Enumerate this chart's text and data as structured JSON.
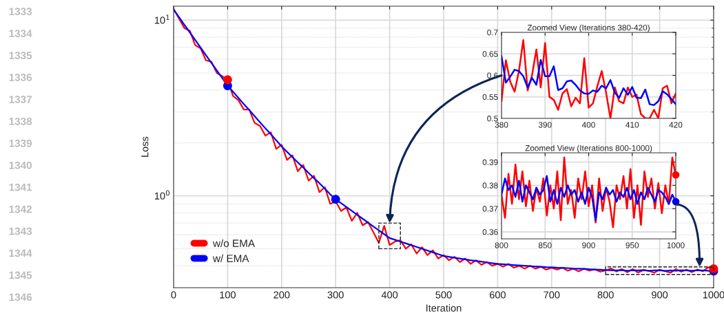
{
  "chart_data": [
    {
      "type": "line",
      "xlabel": "Iteration",
      "ylabel": "Loss",
      "log": "y",
      "grid": true,
      "legend": "bottom left",
      "xlim": [
        0,
        1000
      ],
      "xticks": [
        0,
        100,
        200,
        300,
        400,
        500,
        600,
        700,
        800,
        900,
        1000
      ],
      "ylim": [
        0.3,
        12
      ],
      "yticks": [
        {
          "value": 1,
          "label": "10$^{0}$"
        },
        {
          "value": 10,
          "label": "10$^{1}$"
        }
      ],
      "annotations": [
        "1333",
        "1334",
        "1335",
        "1336",
        "1337",
        "1338",
        "1339",
        "1340",
        "1341",
        "1342",
        "1343",
        "1344",
        "1345",
        "1346"
      ],
      "x": [
        0,
        10,
        20,
        30,
        40,
        50,
        60,
        70,
        80,
        90,
        100,
        110,
        120,
        130,
        140,
        150,
        160,
        170,
        180,
        190,
        200,
        210,
        220,
        230,
        240,
        250,
        260,
        270,
        280,
        290,
        300,
        310,
        320,
        330,
        340,
        350,
        360,
        370,
        380,
        390,
        400,
        410,
        420,
        430,
        440,
        450,
        460,
        470,
        480,
        490,
        500,
        510,
        520,
        530,
        540,
        550,
        560,
        570,
        580,
        590,
        600,
        610,
        620,
        630,
        640,
        650,
        660,
        670,
        680,
        690,
        700,
        710,
        720,
        730,
        740,
        750,
        760,
        770,
        780,
        790,
        800,
        810,
        820,
        830,
        840,
        850,
        860,
        870,
        880,
        890,
        900,
        910,
        920,
        930,
        940,
        950,
        960,
        970,
        980,
        990,
        1000
      ],
      "series": [
        {
          "name": "w/o EMA",
          "color": "#ff0000",
          "values": [
            11.6,
            10.2,
            9.0,
            8.7,
            7.2,
            6.9,
            5.9,
            5.8,
            5.0,
            4.8,
            4.58,
            3.7,
            3.5,
            3.1,
            3.1,
            2.6,
            2.5,
            2.2,
            2.3,
            1.85,
            1.95,
            1.6,
            1.7,
            1.38,
            1.5,
            1.22,
            1.3,
            1.05,
            1.12,
            0.9,
            0.93,
            0.82,
            0.86,
            0.72,
            0.8,
            0.68,
            0.71,
            0.62,
            0.54,
            0.675,
            0.525,
            0.55,
            0.558,
            0.5,
            0.53,
            0.47,
            0.51,
            0.46,
            0.49,
            0.44,
            0.46,
            0.43,
            0.45,
            0.42,
            0.44,
            0.41,
            0.43,
            0.405,
            0.42,
            0.4,
            0.41,
            0.395,
            0.41,
            0.39,
            0.4,
            0.385,
            0.4,
            0.385,
            0.395,
            0.38,
            0.39,
            0.38,
            0.39,
            0.375,
            0.385,
            0.372,
            0.385,
            0.375,
            0.382,
            0.37,
            0.376,
            0.386,
            0.371,
            0.383,
            0.367,
            0.383,
            0.366,
            0.378,
            0.374,
            0.365,
            0.38,
            0.373,
            0.365,
            0.383,
            0.37,
            0.38,
            0.368,
            0.381,
            0.372,
            0.392,
            0.3845
          ]
        },
        {
          "name": "w/ EMA",
          "color": "#0000ff",
          "values": [
            11.48,
            10.4,
            9.4,
            8.52,
            7.71,
            6.97,
            6.31,
            5.71,
            5.17,
            4.68,
            4.23,
            3.91,
            3.61,
            3.33,
            3.08,
            2.84,
            2.62,
            2.42,
            2.24,
            2.07,
            1.91,
            1.78,
            1.66,
            1.55,
            1.45,
            1.35,
            1.26,
            1.18,
            1.1,
            1.02,
            0.956,
            0.909,
            0.864,
            0.821,
            0.78,
            0.741,
            0.704,
            0.669,
            0.636,
            0.605,
            0.575,
            0.562,
            0.549,
            0.536,
            0.524,
            0.512,
            0.5,
            0.488,
            0.477,
            0.466,
            0.455,
            0.45,
            0.445,
            0.44,
            0.435,
            0.43,
            0.426,
            0.422,
            0.418,
            0.414,
            0.41,
            0.408,
            0.406,
            0.404,
            0.402,
            0.4,
            0.398,
            0.396,
            0.395,
            0.393,
            0.392,
            0.39,
            0.389,
            0.388,
            0.386,
            0.385,
            0.384,
            0.382,
            0.381,
            0.38,
            0.378,
            0.377,
            0.376,
            0.378,
            0.375,
            0.377,
            0.376,
            0.378,
            0.375,
            0.376,
            0.377,
            0.374,
            0.376,
            0.375,
            0.377,
            0.376,
            0.375,
            0.377,
            0.376,
            0.375,
            0.373
          ]
        },
        {
          "type": "scatter",
          "marker": "circle",
          "color": "#ff0000",
          "x": [
            100,
            300,
            1000
          ],
          "values": [
            4.58,
            null,
            0.3845
          ]
        },
        {
          "type": "scatter",
          "marker": "circle",
          "color": "#0000ff",
          "x": [
            100,
            300,
            1000
          ],
          "values": [
            4.23,
            0.956,
            0.373
          ]
        }
      ]
    },
    {
      "type": "line",
      "title": "Zoomed View (Iterations 380-420)",
      "grid": true,
      "xlim": [
        380,
        420
      ],
      "xticks": [
        380,
        390,
        400,
        410,
        420
      ],
      "ylim": [
        0.5,
        0.7
      ],
      "yticks": [
        0.5,
        0.55,
        0.6,
        0.65,
        0.7
      ],
      "x": [
        380,
        381,
        382,
        383,
        384,
        385,
        386,
        387,
        388,
        389,
        390,
        391,
        392,
        393,
        394,
        395,
        396,
        397,
        398,
        399,
        400,
        401,
        402,
        403,
        404,
        405,
        406,
        407,
        408,
        409,
        410,
        411,
        412,
        413,
        414,
        415,
        416,
        417,
        418,
        419,
        420
      ],
      "series": [
        {
          "color": "#ff0000",
          "values": [
            0.54,
            0.635,
            0.585,
            0.562,
            0.61,
            0.682,
            0.565,
            0.6,
            0.66,
            0.572,
            0.675,
            0.55,
            0.543,
            0.52,
            0.558,
            0.568,
            0.528,
            0.548,
            0.535,
            0.64,
            0.525,
            0.535,
            0.575,
            0.61,
            0.56,
            0.5,
            0.572,
            0.54,
            0.535,
            0.572,
            0.55,
            0.555,
            0.51,
            0.5,
            0.5,
            0.52,
            0.5,
            0.57,
            0.576,
            0.535,
            0.558
          ]
        },
        {
          "color": "#0000ff",
          "values": [
            0.645,
            0.583,
            0.597,
            0.613,
            0.61,
            0.598,
            0.572,
            0.594,
            0.578,
            0.636,
            0.598,
            0.598,
            0.621,
            0.566,
            0.57,
            0.586,
            0.588,
            0.578,
            0.565,
            0.558,
            0.557,
            0.565,
            0.562,
            0.576,
            0.57,
            0.589,
            0.56,
            0.548,
            0.57,
            0.555,
            0.573,
            0.548,
            0.547,
            0.567,
            0.533,
            0.531,
            0.54,
            0.563,
            0.556,
            0.545,
            0.533
          ]
        }
      ]
    },
    {
      "type": "line",
      "title": "Zoomed View (Iterations 800-1000)",
      "grid": true,
      "xlim": [
        800,
        1000
      ],
      "xticks": [
        800,
        850,
        900,
        950,
        1000
      ],
      "ylim": [
        0.357,
        0.394
      ],
      "yticks": [
        0.36,
        0.37,
        0.38,
        0.39
      ],
      "x": [
        800,
        804,
        808,
        812,
        816,
        820,
        824,
        828,
        832,
        836,
        840,
        844,
        848,
        852,
        856,
        860,
        864,
        868,
        872,
        876,
        880,
        884,
        888,
        892,
        896,
        900,
        904,
        908,
        912,
        916,
        920,
        924,
        928,
        932,
        936,
        940,
        944,
        948,
        952,
        956,
        960,
        964,
        968,
        972,
        976,
        980,
        984,
        988,
        992,
        996,
        1000
      ],
      "series": [
        {
          "color": "#ff0000",
          "values": [
            0.376,
            0.366,
            0.385,
            0.372,
            0.389,
            0.374,
            0.386,
            0.371,
            0.382,
            0.369,
            0.379,
            0.373,
            0.383,
            0.367,
            0.38,
            0.37,
            0.386,
            0.365,
            0.392,
            0.372,
            0.378,
            0.366,
            0.383,
            0.374,
            0.386,
            0.371,
            0.38,
            0.364,
            0.383,
            0.369,
            0.379,
            0.373,
            0.362,
            0.38,
            0.374,
            0.384,
            0.37,
            0.387,
            0.366,
            0.38,
            0.363,
            0.386,
            0.375,
            0.383,
            0.37,
            0.381,
            0.368,
            0.38,
            0.372,
            0.392,
            0.384
          ]
        },
        {
          "color": "#0000ff",
          "values": [
            0.376,
            0.383,
            0.378,
            0.38,
            0.375,
            0.382,
            0.373,
            0.38,
            0.377,
            0.374,
            0.379,
            0.376,
            0.378,
            0.384,
            0.373,
            0.378,
            0.372,
            0.379,
            0.375,
            0.38,
            0.376,
            0.378,
            0.373,
            0.377,
            0.372,
            0.379,
            0.375,
            0.365,
            0.377,
            0.374,
            0.379,
            0.376,
            0.378,
            0.373,
            0.377,
            0.375,
            0.379,
            0.374,
            0.378,
            0.372,
            0.377,
            0.374,
            0.379,
            0.376,
            0.373,
            0.378,
            0.377,
            0.375,
            0.372,
            0.376,
            0.373
          ]
        },
        {
          "type": "scatter",
          "marker": "circle",
          "color": "#ff0000",
          "x": [
            1000
          ],
          "values": [
            0.3845
          ]
        },
        {
          "type": "scatter",
          "marker": "circle",
          "color": "#0000ff",
          "x": [
            1000
          ],
          "values": [
            0.373
          ]
        }
      ]
    }
  ]
}
